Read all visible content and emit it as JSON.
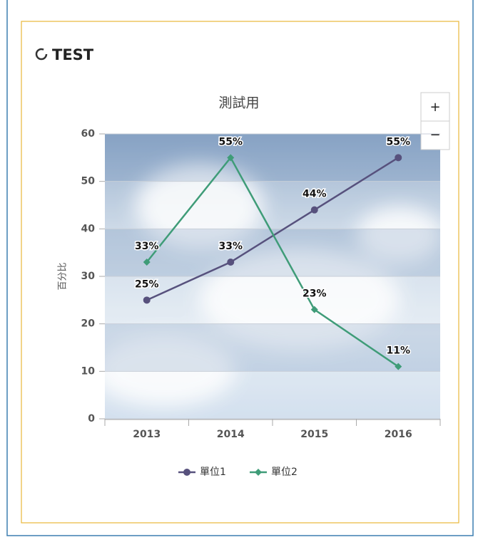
{
  "header": {
    "title": "TEST"
  },
  "zoom": {
    "in": "+",
    "out": "−"
  },
  "chart_data": {
    "type": "line",
    "title": "測試用",
    "y_label": "百分比",
    "categories": [
      "2013",
      "2014",
      "2015",
      "2016"
    ],
    "series": [
      {
        "name": "單位1",
        "color": "#57517d",
        "marker": "circle",
        "values": [
          25,
          33,
          44,
          55
        ],
        "value_labels": [
          "25%",
          "33%",
          "44%",
          "55%"
        ]
      },
      {
        "name": "單位2",
        "color": "#3f9c78",
        "marker": "diamond",
        "values": [
          33,
          55,
          23,
          11
        ],
        "value_labels": [
          "33%",
          "55%",
          "23%",
          "11%"
        ]
      }
    ],
    "ylim": [
      0,
      60
    ],
    "yticks": [
      0,
      10,
      20,
      30,
      40,
      50,
      60
    ],
    "grid": true,
    "legend": "bottom"
  }
}
